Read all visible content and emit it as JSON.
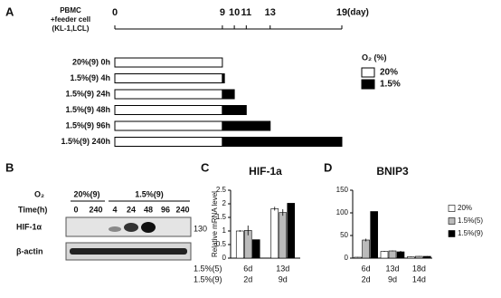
{
  "panel_labels": [
    "A",
    "B",
    "C",
    "D"
  ],
  "chart_data": [
    {
      "type": "timeline",
      "row_header": [
        "PBMC",
        "+feeder cell",
        "(KL-1,LCL)"
      ],
      "xunit": "(day)",
      "xlim": [
        0,
        19
      ],
      "xticks": [
        0,
        9,
        10,
        11,
        13,
        19
      ],
      "categories": [
        "20%(9) 0h",
        "1.5%(9) 4h",
        "1.5%(9) 24h",
        "1.5%(9) 48h",
        "1.5%(9) 96h",
        "1.5%(9) 240h"
      ],
      "legend_title": "O₂ (%)",
      "series": [
        {
          "name": "20%",
          "color": "#ffffff",
          "values": [
            9,
            9,
            9,
            9,
            9,
            9
          ]
        },
        {
          "name": "1.5%",
          "color": "#000000",
          "values": [
            null,
            0.17,
            1,
            2,
            4,
            10
          ]
        }
      ]
    },
    {
      "type": "bar",
      "title": "HIF-1a",
      "ylabel": "Relative mRNA level",
      "ylim": [
        0,
        2.5
      ],
      "yticks": [
        0,
        0.5,
        1,
        1.5,
        2,
        2.5
      ],
      "row_labels": [
        "1.5%(5)",
        "1.5%(9)"
      ],
      "categories": [
        "6d",
        "13d"
      ],
      "categories2": [
        "2d",
        "9d"
      ],
      "series": [
        {
          "color": "#ffffff",
          "values": [
            1.0,
            1.82
          ],
          "errors": [
            0.03,
            0.07
          ]
        },
        {
          "color": "#bbbbbb",
          "values": [
            1.02,
            1.68
          ],
          "errors": [
            0.18,
            0.12
          ]
        },
        {
          "color": "#000000",
          "values": [
            0.68,
            2.02
          ],
          "errors": [
            0,
            0
          ]
        }
      ]
    },
    {
      "type": "bar",
      "title": "BNIP3",
      "ylim": [
        0,
        150
      ],
      "yticks": [
        0,
        50,
        100,
        150
      ],
      "categories": [
        "6d",
        "13d",
        "18d"
      ],
      "categories2": [
        "2d",
        "9d",
        "14d"
      ],
      "series": [
        {
          "name": "20%",
          "color": "#ffffff",
          "values": [
            2,
            15,
            3
          ],
          "errors": [
            0.5,
            1,
            0.5
          ]
        },
        {
          "name": "1.5%(5)",
          "color": "#bbbbbb",
          "values": [
            40,
            16,
            4
          ],
          "errors": [
            3,
            1,
            0.5
          ]
        },
        {
          "name": "1.5%(9)",
          "color": "#000000",
          "values": [
            103,
            14,
            4
          ],
          "errors": [
            0,
            2,
            0.5
          ]
        }
      ]
    }
  ],
  "blot": {
    "o2_label": "O₂",
    "groups": [
      "20%(9)",
      "1.5%(9)"
    ],
    "time_label": "Time(h)",
    "times": [
      "0",
      "240",
      "4",
      "24",
      "48",
      "96",
      "240"
    ],
    "rows": [
      "HIF-1α",
      "β-actin"
    ],
    "marker": "130"
  }
}
